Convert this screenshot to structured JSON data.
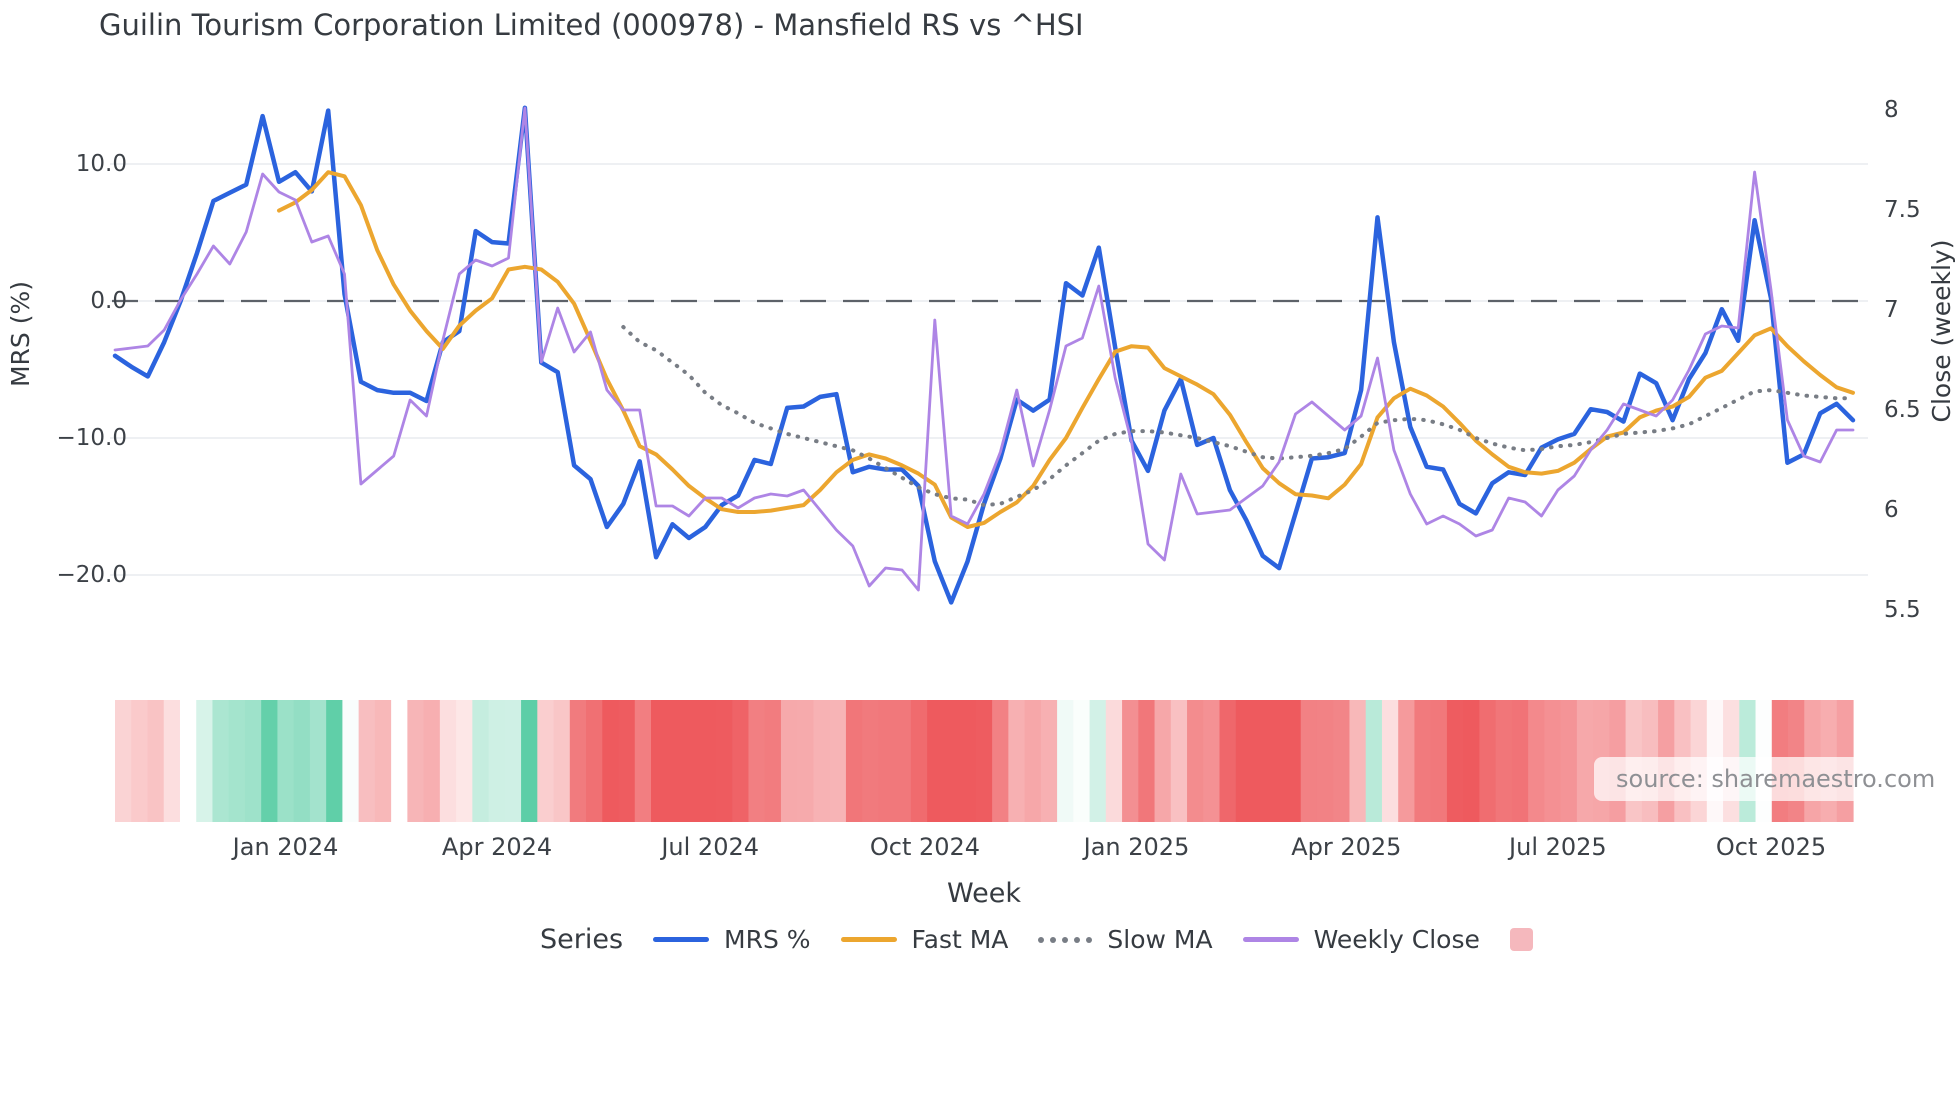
{
  "title": "Guilin Tourism Corporation Limited (000978) - Mansfield RS vs ^HSI",
  "source": "source: sharemaestro.com",
  "axes": {
    "left": {
      "label": "MRS (%)",
      "tick_labels": [
        "10.0",
        "0.0",
        "−10.0",
        "−20.0"
      ],
      "tick_values": [
        10,
        0,
        -10,
        -20
      ]
    },
    "right": {
      "label": "Close (weekly)",
      "tick_labels": [
        "8",
        "7.5",
        "7",
        "6.5",
        "6",
        "5.5"
      ],
      "tick_values": [
        8,
        7.5,
        7,
        6.5,
        6,
        5.5
      ]
    },
    "x": {
      "label": "Week",
      "ticks": [
        {
          "label": "Jan 2024",
          "pos": 10.4
        },
        {
          "label": "Apr 2024",
          "pos": 23.3
        },
        {
          "label": "Jul 2024",
          "pos": 36.3
        },
        {
          "label": "Oct 2024",
          "pos": 49.4
        },
        {
          "label": "Jan 2025",
          "pos": 62.3
        },
        {
          "label": "Apr 2025",
          "pos": 75.1
        },
        {
          "label": "Jul 2025",
          "pos": 88.0
        },
        {
          "label": "Oct 2025",
          "pos": 101.0
        }
      ]
    }
  },
  "legend": {
    "series_label": "Series",
    "items": [
      {
        "label": "MRS %",
        "style": "line",
        "color": "#2b63de"
      },
      {
        "label": "Fast MA",
        "style": "line",
        "color": "#eca62f"
      },
      {
        "label": "Slow MA",
        "style": "dotted",
        "color": "#787d85"
      },
      {
        "label": "Weekly Close",
        "style": "line",
        "color": "#ae85e5"
      },
      {
        "label": "",
        "style": "square",
        "color": "#f5b8bd"
      }
    ]
  },
  "chart_data": {
    "type": "line",
    "x_unit": "week_index",
    "n_points": 107,
    "ylim_left": [
      -26,
      16
    ],
    "ylim_right": [
      5.3,
      8.2
    ],
    "zero_line_left": 0,
    "grid": "horizontal-only",
    "legend_position": "bottom",
    "colors": {
      "grid": "#e9ecef",
      "zero_dash": "#5d6269",
      "heat_positive": "#53cba1",
      "heat_negative": "#ee5a5e",
      "heat_missing": "#ffffff"
    },
    "series": [
      {
        "name": "MRS %",
        "axis": "left",
        "color": "#2b63de",
        "width": 4.5,
        "dash": "solid",
        "values": [
          -4.0,
          -4.8,
          -5.5,
          -3.0,
          0.0,
          3.5,
          7.3,
          7.9,
          8.5,
          13.5,
          8.7,
          9.4,
          8.0,
          13.9,
          0.5,
          -5.9,
          -6.5,
          -6.7,
          -6.7,
          -7.3,
          -3.0,
          -2.2,
          5.1,
          4.3,
          4.2,
          14.1,
          -4.5,
          -5.2,
          -12.0,
          -13.0,
          -16.5,
          -14.8,
          -11.7,
          -18.7,
          -16.3,
          -17.3,
          -16.5,
          -14.9,
          -14.2,
          -11.6,
          -11.9,
          -7.8,
          -7.7,
          -7.0,
          -6.8,
          -12.5,
          -12.1,
          -12.3,
          -12.3,
          -13.5,
          -19.0,
          -22.0,
          -19.0,
          -14.8,
          -11.5,
          -7.2,
          -8.0,
          -7.2,
          1.3,
          0.4,
          3.9,
          -3.4,
          -10.2,
          -12.4,
          -8.0,
          -5.7,
          -10.5,
          -10.0,
          -13.8,
          -16.0,
          -18.6,
          -19.5,
          -15.5,
          -11.5,
          -11.4,
          -11.1,
          -6.5,
          6.1,
          -3.0,
          -9.2,
          -12.1,
          -12.3,
          -14.8,
          -15.5,
          -13.3,
          -12.5,
          -12.7,
          -10.7,
          -10.1,
          -9.7,
          -7.9,
          -8.1,
          -8.8,
          -5.3,
          -6.0,
          -8.7,
          -5.7,
          -3.8,
          -0.6,
          -2.9,
          5.9,
          0.2,
          -11.8,
          -11.2,
          -8.2,
          -7.5,
          -8.7
        ]
      },
      {
        "name": "Fast MA",
        "axis": "left",
        "color": "#eca62f",
        "width": 4,
        "dash": "solid",
        "values": [
          null,
          null,
          null,
          null,
          null,
          null,
          null,
          null,
          null,
          null,
          6.6,
          7.2,
          8.1,
          9.4,
          9.1,
          7.0,
          3.7,
          1.2,
          -0.7,
          -2.2,
          -3.5,
          -1.8,
          -0.7,
          0.2,
          2.3,
          2.5,
          2.3,
          1.4,
          -0.2,
          -2.9,
          -5.7,
          -8.0,
          -10.6,
          -11.2,
          -12.3,
          -13.5,
          -14.4,
          -15.2,
          -15.4,
          -15.4,
          -15.3,
          -15.1,
          -14.9,
          -13.8,
          -12.5,
          -11.6,
          -11.2,
          -11.5,
          -12.0,
          -12.6,
          -13.4,
          -15.8,
          -16.5,
          -16.2,
          -15.4,
          -14.7,
          -13.5,
          -11.6,
          -10.0,
          -7.8,
          -5.7,
          -3.7,
          -3.3,
          -3.4,
          -4.9,
          -5.5,
          -6.1,
          -6.8,
          -8.3,
          -10.3,
          -12.2,
          -13.3,
          -14.1,
          -14.2,
          -14.4,
          -13.4,
          -11.9,
          -8.5,
          -7.1,
          -6.4,
          -6.9,
          -7.7,
          -8.9,
          -10.2,
          -11.2,
          -12.1,
          -12.5,
          -12.6,
          -12.4,
          -11.8,
          -10.8,
          -9.9,
          -9.6,
          -8.5,
          -8.0,
          -7.7,
          -7.0,
          -5.6,
          -5.1,
          -3.8,
          -2.5,
          -2.0,
          -3.3,
          -4.4,
          -5.4,
          -6.3,
          -6.7
        ]
      },
      {
        "name": "Slow MA",
        "axis": "left",
        "color": "#787d85",
        "width": 3.5,
        "dash": "dotted",
        "values": [
          null,
          null,
          null,
          null,
          null,
          null,
          null,
          null,
          null,
          null,
          null,
          null,
          null,
          null,
          null,
          null,
          null,
          null,
          null,
          null,
          null,
          null,
          null,
          null,
          null,
          null,
          null,
          null,
          null,
          null,
          null,
          -1.9,
          -3.0,
          -3.6,
          -4.5,
          -5.4,
          -6.7,
          -7.6,
          -8.2,
          -8.9,
          -9.3,
          -9.7,
          -10.0,
          -10.3,
          -10.6,
          -10.9,
          -11.5,
          -12.2,
          -12.9,
          -13.6,
          -14.1,
          -14.4,
          -14.5,
          -14.9,
          -14.8,
          -14.3,
          -13.8,
          -13.0,
          -12.0,
          -11.1,
          -10.2,
          -9.7,
          -9.5,
          -9.5,
          -9.6,
          -9.8,
          -10.0,
          -10.3,
          -10.6,
          -11.0,
          -11.4,
          -11.5,
          -11.4,
          -11.3,
          -11.1,
          -10.8,
          -9.9,
          -8.9,
          -8.7,
          -8.6,
          -8.7,
          -9.0,
          -9.4,
          -10.0,
          -10.4,
          -10.7,
          -10.9,
          -10.8,
          -10.6,
          -10.5,
          -10.3,
          -10.0,
          -9.7,
          -9.6,
          -9.5,
          -9.3,
          -9.0,
          -8.4,
          -7.8,
          -7.2,
          -6.6,
          -6.5,
          -6.7,
          -6.9,
          -7.0,
          -7.1,
          -7.1
        ]
      },
      {
        "name": "Weekly Close",
        "axis": "right",
        "color": "#ae85e5",
        "width": 2.8,
        "dash": "solid",
        "values": [
          6.8,
          6.81,
          6.82,
          6.9,
          7.05,
          7.18,
          7.32,
          7.23,
          7.39,
          7.68,
          7.59,
          7.55,
          7.34,
          7.37,
          7.18,
          6.13,
          6.2,
          6.27,
          6.55,
          6.47,
          6.85,
          7.18,
          7.25,
          7.22,
          7.26,
          8.01,
          6.74,
          7.01,
          6.79,
          6.89,
          6.6,
          6.5,
          6.5,
          6.02,
          6.02,
          5.97,
          6.06,
          6.06,
          6.01,
          6.06,
          6.08,
          6.07,
          6.1,
          6.0,
          5.9,
          5.82,
          5.62,
          5.71,
          5.7,
          5.6,
          6.95,
          5.97,
          5.93,
          6.08,
          6.29,
          6.6,
          6.22,
          6.5,
          6.82,
          6.86,
          7.12,
          6.66,
          6.34,
          5.83,
          5.75,
          6.18,
          5.98,
          5.99,
          6.0,
          6.06,
          6.12,
          6.24,
          6.48,
          6.54,
          6.47,
          6.4,
          6.47,
          6.76,
          6.3,
          6.08,
          5.93,
          5.97,
          5.93,
          5.87,
          5.9,
          6.06,
          6.04,
          5.97,
          6.1,
          6.17,
          6.3,
          6.4,
          6.53,
          6.5,
          6.47,
          6.55,
          6.7,
          6.88,
          6.92,
          6.91,
          7.69,
          7.1,
          6.45,
          6.27,
          6.24,
          6.4,
          6.4
        ]
      }
    ],
    "heatmap": {
      "description": "weekly strip colored by MRS % (green positive, red negative)",
      "source_series": "MRS %",
      "saturation_at_abs": 15,
      "missing_weeks": [
        17
      ]
    }
  }
}
